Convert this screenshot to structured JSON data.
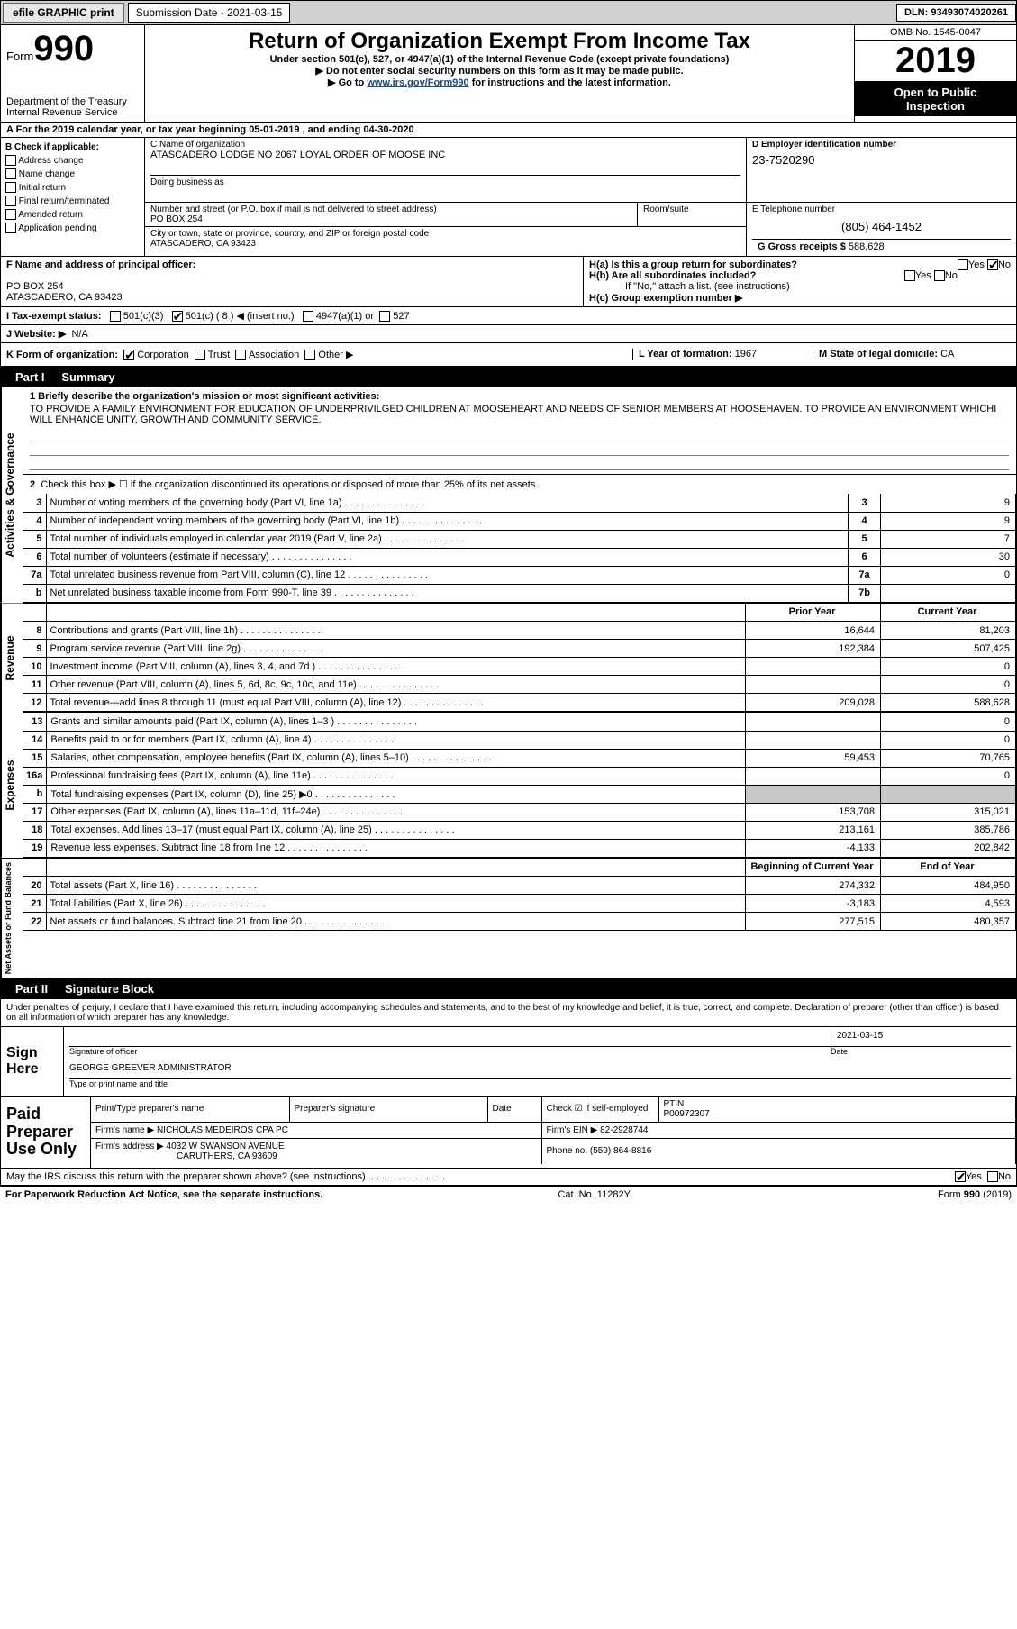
{
  "topbar": {
    "efile": "efile GRAPHIC print",
    "submission": "Submission Date - 2021-03-15",
    "dln": "DLN: 93493074020261"
  },
  "header": {
    "form_label": "Form",
    "form_num": "990",
    "dept": "Department of the Treasury",
    "irs": "Internal Revenue Service",
    "title": "Return of Organization Exempt From Income Tax",
    "sub1": "Under section 501(c), 527, or 4947(a)(1) of the Internal Revenue Code (except private foundations)",
    "sub2": "▶ Do not enter social security numbers on this form as it may be made public.",
    "sub3_pre": "▶ Go to ",
    "sub3_link": "www.irs.gov/Form990",
    "sub3_post": " for instructions and the latest information.",
    "omb": "OMB No. 1545-0047",
    "year": "2019",
    "inspect1": "Open to Public",
    "inspect2": "Inspection"
  },
  "rowA": "A For the 2019 calendar year, or tax year beginning 05-01-2019    , and ending 04-30-2020",
  "colB": {
    "hdr": "B Check if applicable:",
    "items": [
      "Address change",
      "Name change",
      "Initial return",
      "Final return/terminated",
      "Amended return",
      "Application pending"
    ]
  },
  "colC": {
    "name_lbl": "C Name of organization",
    "name": "ATASCADERO LODGE NO 2067 LOYAL ORDER OF MOOSE INC",
    "dba_lbl": "Doing business as",
    "addr_lbl": "Number and street (or P.O. box if mail is not delivered to street address)",
    "addr": "PO BOX 254",
    "room_lbl": "Room/suite",
    "city_lbl": "City or town, state or province, country, and ZIP or foreign postal code",
    "city": "ATASCADERO, CA  93423"
  },
  "colD": {
    "lbl": "D Employer identification number",
    "val": "23-7520290"
  },
  "colE": {
    "lbl": "E Telephone number",
    "val": "(805) 464-1452"
  },
  "colG": {
    "lbl": "G Gross receipts $",
    "val": "588,628"
  },
  "rowF": {
    "lbl": "F  Name and address of principal officer:",
    "addr1": "PO BOX 254",
    "addr2": "ATASCADERO, CA  93423",
    "ha": "H(a)  Is this a group return for subordinates?",
    "hb": "H(b)  Are all subordinates included?",
    "hb_note": "If \"No,\" attach a list. (see instructions)",
    "hc": "H(c)  Group exemption number ▶"
  },
  "rowI": {
    "lbl": "I    Tax-exempt status:",
    "c3": "501(c)(3)",
    "c": "501(c) ( 8 ) ◀ (insert no.)",
    "a1": "4947(a)(1) or",
    "527": "527"
  },
  "rowJ": {
    "lbl": "J   Website: ▶",
    "val": "N/A"
  },
  "rowK": {
    "lbl": "K Form of organization:",
    "corp": "Corporation",
    "trust": "Trust",
    "assoc": "Association",
    "other": "Other ▶",
    "yof_lbl": "L Year of formation:",
    "yof": "1967",
    "dom_lbl": "M State of legal domicile:",
    "dom": "CA"
  },
  "part1": {
    "hdr": "Part I",
    "title": "Summary",
    "side1": "Activities & Governance",
    "side2": "Revenue",
    "side3": "Expenses",
    "side4": "Net Assets or Fund Balances",
    "l1_lbl": "1  Briefly describe the organization's mission or most significant activities:",
    "l1_text": "TO PROVIDE A FAMILY ENVIRONMENT FOR EDUCATION OF UNDERPRIVILGED CHILDREN AT MOOSEHEART AND NEEDS OF SENIOR MEMBERS AT HOOSEHAVEN. TO PROVIDE AN ENVIRONMENT WHICHI WILL ENHANCE UNITY, GROWTH AND COMMUNITY SERVICE.",
    "l2": "Check this box ▶ ☐ if the organization discontinued its operations or disposed of more than 25% of its net assets.",
    "prior_hdr": "Prior Year",
    "curr_hdr": "Current Year",
    "boy_hdr": "Beginning of Current Year",
    "eoy_hdr": "End of Year",
    "rows_gov": [
      {
        "n": "3",
        "d": "Number of voting members of the governing body (Part VI, line 1a)",
        "box": "3",
        "v": "9"
      },
      {
        "n": "4",
        "d": "Number of independent voting members of the governing body (Part VI, line 1b)",
        "box": "4",
        "v": "9"
      },
      {
        "n": "5",
        "d": "Total number of individuals employed in calendar year 2019 (Part V, line 2a)",
        "box": "5",
        "v": "7"
      },
      {
        "n": "6",
        "d": "Total number of volunteers (estimate if necessary)",
        "box": "6",
        "v": "30"
      },
      {
        "n": "7a",
        "d": "Total unrelated business revenue from Part VIII, column (C), line 12",
        "box": "7a",
        "v": "0"
      },
      {
        "n": "b",
        "d": "Net unrelated business taxable income from Form 990-T, line 39",
        "box": "7b",
        "v": ""
      }
    ],
    "rows_rev": [
      {
        "n": "8",
        "d": "Contributions and grants (Part VIII, line 1h)",
        "py": "16,644",
        "cy": "81,203"
      },
      {
        "n": "9",
        "d": "Program service revenue (Part VIII, line 2g)",
        "py": "192,384",
        "cy": "507,425"
      },
      {
        "n": "10",
        "d": "Investment income (Part VIII, column (A), lines 3, 4, and 7d )",
        "py": "",
        "cy": "0"
      },
      {
        "n": "11",
        "d": "Other revenue (Part VIII, column (A), lines 5, 6d, 8c, 9c, 10c, and 11e)",
        "py": "",
        "cy": "0"
      },
      {
        "n": "12",
        "d": "Total revenue—add lines 8 through 11 (must equal Part VIII, column (A), line 12)",
        "py": "209,028",
        "cy": "588,628"
      }
    ],
    "rows_exp": [
      {
        "n": "13",
        "d": "Grants and similar amounts paid (Part IX, column (A), lines 1–3 )",
        "py": "",
        "cy": "0"
      },
      {
        "n": "14",
        "d": "Benefits paid to or for members (Part IX, column (A), line 4)",
        "py": "",
        "cy": "0"
      },
      {
        "n": "15",
        "d": "Salaries, other compensation, employee benefits (Part IX, column (A), lines 5–10)",
        "py": "59,453",
        "cy": "70,765"
      },
      {
        "n": "16a",
        "d": "Professional fundraising fees (Part IX, column (A), line 11e)",
        "py": "",
        "cy": "0"
      },
      {
        "n": "b",
        "d": "Total fundraising expenses (Part IX, column (D), line 25) ▶0",
        "py": "shade",
        "cy": "shade"
      },
      {
        "n": "17",
        "d": "Other expenses (Part IX, column (A), lines 11a–11d, 11f–24e)",
        "py": "153,708",
        "cy": "315,021"
      },
      {
        "n": "18",
        "d": "Total expenses. Add lines 13–17 (must equal Part IX, column (A), line 25)",
        "py": "213,161",
        "cy": "385,786"
      },
      {
        "n": "19",
        "d": "Revenue less expenses. Subtract line 18 from line 12",
        "py": "-4,133",
        "cy": "202,842"
      }
    ],
    "rows_net": [
      {
        "n": "20",
        "d": "Total assets (Part X, line 16)",
        "py": "274,332",
        "cy": "484,950"
      },
      {
        "n": "21",
        "d": "Total liabilities (Part X, line 26)",
        "py": "-3,183",
        "cy": "4,593"
      },
      {
        "n": "22",
        "d": "Net assets or fund balances. Subtract line 21 from line 20",
        "py": "277,515",
        "cy": "480,357"
      }
    ]
  },
  "part2": {
    "hdr": "Part II",
    "title": "Signature Block",
    "penalty": "Under penalties of perjury, I declare that I have examined this return, including accompanying schedules and statements, and to the best of my knowledge and belief, it is true, correct, and complete. Declaration of preparer (other than officer) is based on all information of which preparer has any knowledge.",
    "sign_here": "Sign Here",
    "sig_officer": "Signature of officer",
    "sig_date": "2021-03-15",
    "date_lbl": "Date",
    "name_title": "GEORGE GREEVER  ADMINISTRATOR",
    "name_title_lbl": "Type or print name and title",
    "paid": "Paid Preparer Use Only",
    "pt_name_lbl": "Print/Type preparer's name",
    "pt_sig_lbl": "Preparer's signature",
    "pt_date_lbl": "Date",
    "pt_check": "Check ☑ if self-employed",
    "ptin_lbl": "PTIN",
    "ptin": "P00972307",
    "firm_name_lbl": "Firm's name    ▶",
    "firm_name": "NICHOLAS MEDEIROS CPA PC",
    "firm_ein_lbl": "Firm's EIN ▶",
    "firm_ein": "82-2928744",
    "firm_addr_lbl": "Firm's address ▶",
    "firm_addr1": "4032 W SWANSON AVENUE",
    "firm_addr2": "CARUTHERS, CA  93609",
    "phone_lbl": "Phone no.",
    "phone": "(559) 864-8816",
    "discuss": "May the IRS discuss this return with the preparer shown above? (see instructions)",
    "yes": "Yes",
    "no": "No"
  },
  "footer": {
    "left": "For Paperwork Reduction Act Notice, see the separate instructions.",
    "mid": "Cat. No. 11282Y",
    "right": "Form 990 (2019)"
  }
}
